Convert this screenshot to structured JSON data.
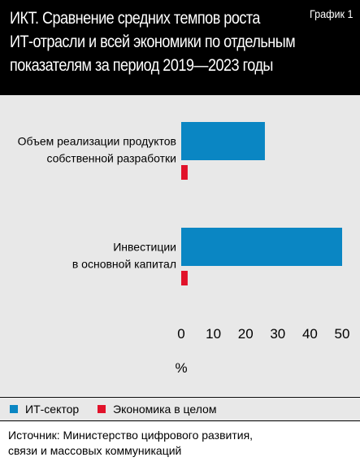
{
  "header": {
    "title_lines": [
      "ИКТ. Сравнение средних темпов роста",
      "ИТ-отрасли и всей экономики по отдельным",
      "показателям за период 2019—2023 годы"
    ],
    "badge": "График 1"
  },
  "legend": {
    "items": [
      {
        "label": "ИТ-сектор",
        "color": "#0a86c3"
      },
      {
        "label": "Экономика в целом",
        "color": "#e1122a"
      }
    ]
  },
  "source": {
    "lines": [
      "Источник: Министерство цифрового развития,",
      "связи и массовых коммуникаций"
    ]
  },
  "chart_data": {
    "type": "bar",
    "orientation": "horizontal",
    "title": "ИКТ. Сравнение средних темпов роста ИТ-отрасли и всей экономики по отдельным показателям за период 2019—2023 годы",
    "categories": [
      {
        "lines": [
          "Объем реализации продуктов",
          "собственной разработки"
        ]
      },
      {
        "lines": [
          "Инвестиции",
          "в основной капитал"
        ]
      }
    ],
    "series": [
      {
        "name": "ИТ-сектор",
        "color": "#0a86c3",
        "values": [
          26,
          50
        ]
      },
      {
        "name": "Экономика в целом",
        "color": "#e1122a",
        "values": [
          2,
          2
        ]
      }
    ],
    "xlabel": "%",
    "xlim": [
      0,
      50
    ],
    "ticks": [
      "0",
      "10",
      "20",
      "30",
      "40",
      "50"
    ],
    "grid": false,
    "legend_position": "bottom"
  }
}
